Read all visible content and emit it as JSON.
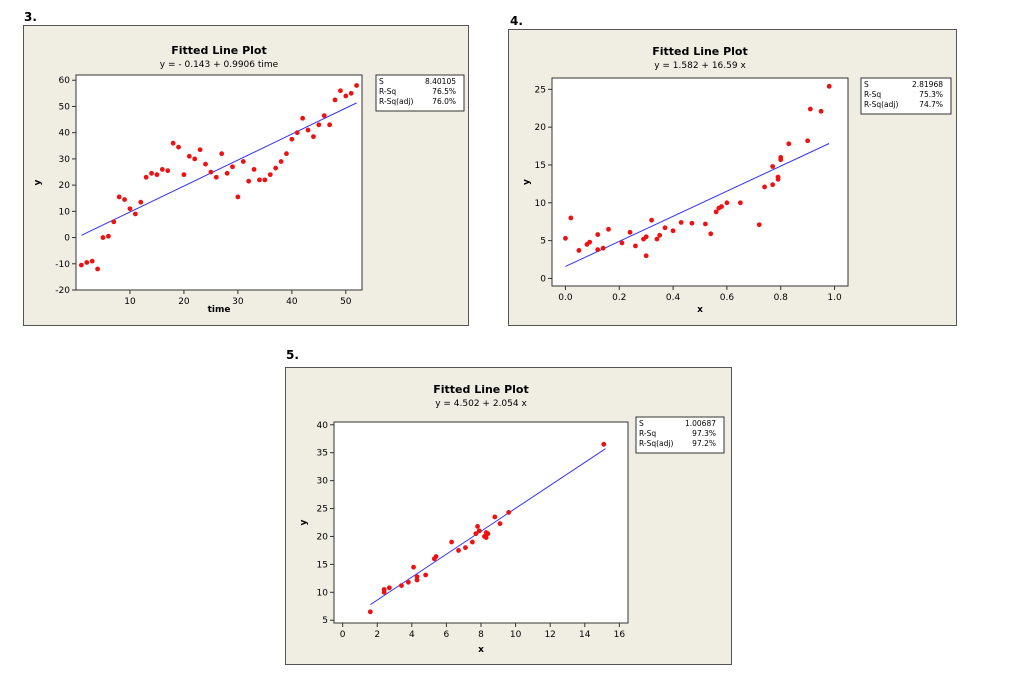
{
  "labels": [
    "3.",
    "4.",
    "5."
  ],
  "chart_data": [
    {
      "type": "scatter",
      "title": "Fitted Line Plot",
      "subtitle": "y =  - 0.143 + 0.9906 time",
      "xlabel": "time",
      "ylabel": "y",
      "xlim": [
        0,
        53
      ],
      "ylim": [
        -20,
        62
      ],
      "xticks": [
        10,
        20,
        30,
        40,
        50
      ],
      "yticks": [
        -20,
        -10,
        0,
        10,
        20,
        30,
        40,
        50,
        60
      ],
      "fit": {
        "intercept": -0.143,
        "slope": 0.9906,
        "x_range": [
          1,
          52
        ]
      },
      "stats": [
        {
          "label": "S",
          "value": "8.40105"
        },
        {
          "label": "R-Sq",
          "value": "76.5%"
        },
        {
          "label": "R-Sq(adj)",
          "value": "76.0%"
        }
      ],
      "points": [
        [
          1,
          -10.5
        ],
        [
          2,
          -9.5
        ],
        [
          3,
          -9
        ],
        [
          4,
          -12
        ],
        [
          5,
          0
        ],
        [
          6,
          0.5
        ],
        [
          7,
          6
        ],
        [
          8,
          15.5
        ],
        [
          9,
          14.5
        ],
        [
          10,
          11
        ],
        [
          11,
          9
        ],
        [
          12,
          13.5
        ],
        [
          13,
          23
        ],
        [
          14,
          24.5
        ],
        [
          15,
          24
        ],
        [
          16,
          26
        ],
        [
          17,
          25.5
        ],
        [
          18,
          36
        ],
        [
          19,
          34.5
        ],
        [
          20,
          24
        ],
        [
          21,
          31
        ],
        [
          22,
          30
        ],
        [
          23,
          33.5
        ],
        [
          24,
          28
        ],
        [
          25,
          25
        ],
        [
          26,
          23
        ],
        [
          27,
          32
        ],
        [
          28,
          24.5
        ],
        [
          29,
          27
        ],
        [
          30,
          15.5
        ],
        [
          31,
          29
        ],
        [
          32,
          21.5
        ],
        [
          33,
          26
        ],
        [
          34,
          22
        ],
        [
          35,
          22
        ],
        [
          36,
          24
        ],
        [
          37,
          26.5
        ],
        [
          38,
          29
        ],
        [
          39,
          32
        ],
        [
          40,
          37.5
        ],
        [
          41,
          40
        ],
        [
          42,
          45.5
        ],
        [
          43,
          41
        ],
        [
          44,
          38.5
        ],
        [
          45,
          43
        ],
        [
          46,
          46.5
        ],
        [
          47,
          43
        ],
        [
          48,
          52.5
        ],
        [
          49,
          56
        ],
        [
          50,
          54
        ],
        [
          51,
          55
        ],
        [
          52,
          58
        ]
      ]
    },
    {
      "type": "scatter",
      "title": "Fitted Line Plot",
      "subtitle": "y =  1.582 + 16.59 x",
      "xlabel": "x",
      "ylabel": "y",
      "xlim": [
        -0.05,
        1.05
      ],
      "ylim": [
        -1,
        26.5
      ],
      "xticks": [
        "0.0",
        "0.2",
        "0.4",
        "0.6",
        "0.8",
        "1.0"
      ],
      "yticks": [
        0,
        5,
        10,
        15,
        20,
        25
      ],
      "fit": {
        "intercept": 1.582,
        "slope": 16.59,
        "x_range": [
          0,
          0.98
        ]
      },
      "stats": [
        {
          "label": "S",
          "value": "2.81968"
        },
        {
          "label": "R-Sq",
          "value": "75.3%"
        },
        {
          "label": "R-Sq(adj)",
          "value": "74.7%"
        }
      ],
      "points": [
        [
          0.0,
          5.3
        ],
        [
          0.02,
          8.0
        ],
        [
          0.05,
          3.7
        ],
        [
          0.08,
          4.5
        ],
        [
          0.09,
          4.8
        ],
        [
          0.12,
          5.8
        ],
        [
          0.12,
          3.8
        ],
        [
          0.14,
          4.0
        ],
        [
          0.16,
          6.5
        ],
        [
          0.21,
          4.7
        ],
        [
          0.24,
          6.1
        ],
        [
          0.26,
          4.3
        ],
        [
          0.29,
          5.2
        ],
        [
          0.3,
          5.5
        ],
        [
          0.3,
          3.0
        ],
        [
          0.32,
          7.7
        ],
        [
          0.34,
          5.2
        ],
        [
          0.35,
          5.7
        ],
        [
          0.37,
          6.7
        ],
        [
          0.4,
          6.3
        ],
        [
          0.43,
          7.4
        ],
        [
          0.47,
          7.3
        ],
        [
          0.52,
          7.2
        ],
        [
          0.54,
          5.9
        ],
        [
          0.56,
          8.8
        ],
        [
          0.57,
          9.3
        ],
        [
          0.58,
          9.5
        ],
        [
          0.6,
          10.0
        ],
        [
          0.65,
          10.0
        ],
        [
          0.72,
          7.1
        ],
        [
          0.74,
          12.1
        ],
        [
          0.77,
          12.4
        ],
        [
          0.77,
          14.8
        ],
        [
          0.79,
          13.1
        ],
        [
          0.79,
          13.4
        ],
        [
          0.8,
          16.0
        ],
        [
          0.8,
          15.7
        ],
        [
          0.83,
          17.8
        ],
        [
          0.9,
          18.2
        ],
        [
          0.91,
          22.4
        ],
        [
          0.95,
          22.1
        ],
        [
          0.98,
          25.4
        ]
      ]
    },
    {
      "type": "scatter",
      "title": "Fitted Line Plot",
      "subtitle": "y =  4.502 + 2.054 x",
      "xlabel": "x",
      "ylabel": "y",
      "xlim": [
        -0.5,
        16.5
      ],
      "ylim": [
        4.5,
        40.5
      ],
      "xticks": [
        0,
        2,
        4,
        6,
        8,
        10,
        12,
        14,
        16
      ],
      "yticks": [
        5,
        10,
        15,
        20,
        25,
        30,
        35,
        40
      ],
      "fit": {
        "intercept": 4.502,
        "slope": 2.054,
        "x_range": [
          1.6,
          15.2
        ]
      },
      "stats": [
        {
          "label": "S",
          "value": "1.00687"
        },
        {
          "label": "R-Sq",
          "value": "97.3%"
        },
        {
          "label": "R-Sq(adj)",
          "value": "97.2%"
        }
      ],
      "points": [
        [
          1.6,
          6.5
        ],
        [
          2.4,
          10
        ],
        [
          2.4,
          10.5
        ],
        [
          2.7,
          10.8
        ],
        [
          3.4,
          11.2
        ],
        [
          3.8,
          11.8
        ],
        [
          4.1,
          14.5
        ],
        [
          4.3,
          12.2
        ],
        [
          4.3,
          12.8
        ],
        [
          4.8,
          13.1
        ],
        [
          5.3,
          16
        ],
        [
          5.4,
          16.4
        ],
        [
          6.3,
          19
        ],
        [
          6.7,
          17.5
        ],
        [
          7.1,
          18
        ],
        [
          7.5,
          19
        ],
        [
          7.7,
          20.5
        ],
        [
          7.8,
          21.8
        ],
        [
          7.9,
          21
        ],
        [
          8.2,
          20
        ],
        [
          8.3,
          20.7
        ],
        [
          8.4,
          20.5
        ],
        [
          8.3,
          19.8
        ],
        [
          8.8,
          23.5
        ],
        [
          9.1,
          22.3
        ],
        [
          9.6,
          24.3
        ],
        [
          15.1,
          36.5
        ]
      ]
    }
  ]
}
